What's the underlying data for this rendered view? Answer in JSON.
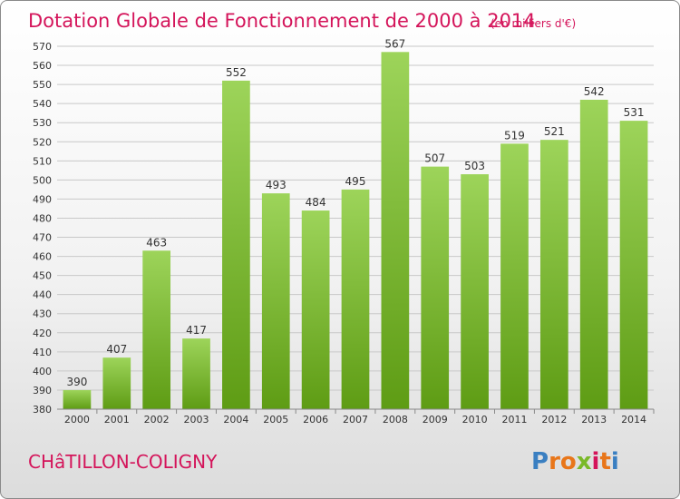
{
  "header": {
    "title": "Dotation Globale de Fonctionnement de 2000 à 2014",
    "unit": "(en milliers d'€)"
  },
  "footer": {
    "city": "CHâTILLON-COLIGNY",
    "logo": "Proxiti"
  },
  "colors": {
    "accent": "#d4145a",
    "bar_top": "#9dd45a",
    "bar_bottom": "#5e9c14"
  },
  "chart_data": {
    "type": "bar",
    "categories": [
      "2000",
      "2001",
      "2002",
      "2003",
      "2004",
      "2005",
      "2006",
      "2007",
      "2008",
      "2009",
      "2010",
      "2011",
      "2012",
      "2013",
      "2014"
    ],
    "values": [
      390,
      407,
      463,
      417,
      552,
      493,
      484,
      495,
      567,
      507,
      503,
      519,
      521,
      542,
      531
    ],
    "data_labels": [
      "390",
      "407",
      "463",
      "417",
      "552",
      "493",
      "484",
      "495",
      "567",
      "507",
      "503",
      "519",
      "521",
      "542",
      "531"
    ],
    "ylim": [
      380,
      570
    ],
    "y_ticks": [
      380,
      390,
      400,
      410,
      420,
      430,
      440,
      450,
      460,
      470,
      480,
      490,
      500,
      510,
      520,
      530,
      540,
      550,
      560,
      570
    ],
    "grid": true,
    "legend": "none"
  }
}
